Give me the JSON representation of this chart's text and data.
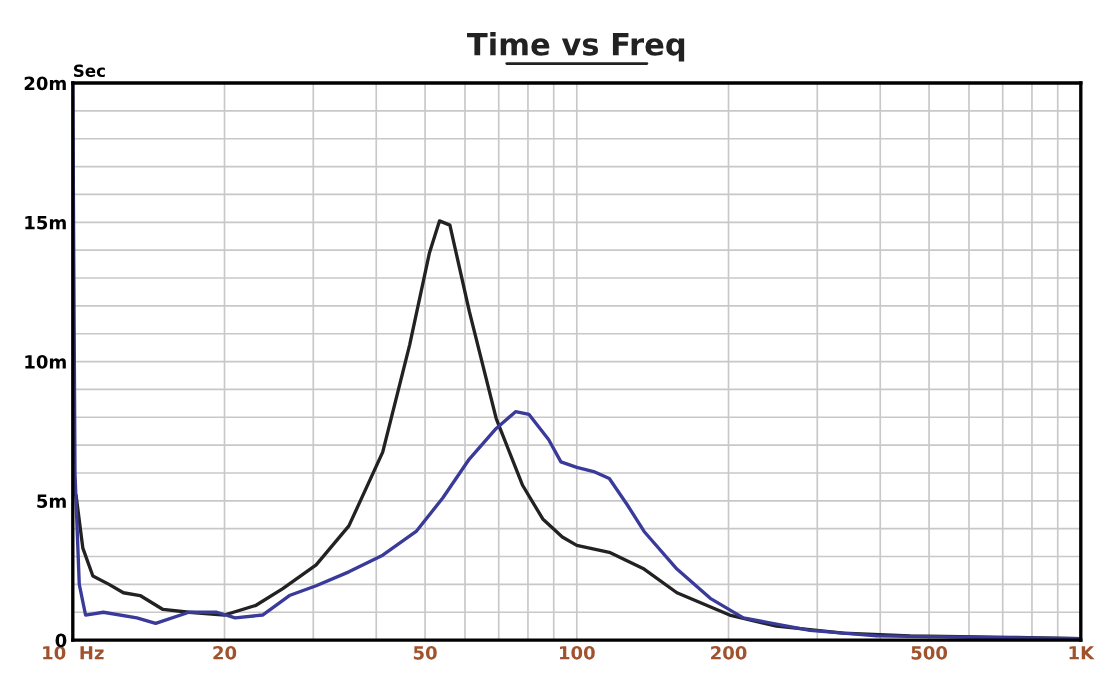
{
  "chart_data": {
    "type": "line",
    "title": "Time vs Freq",
    "ylabel": "Sec",
    "log": "x",
    "grid": true,
    "marker": "none",
    "line_style": "solid",
    "xlim": [
      10,
      1000
    ],
    "ylim": [
      0,
      20
    ],
    "xticks": [
      {
        "value": 10,
        "label": "10  Hz"
      },
      {
        "value": 20,
        "label": "20"
      },
      {
        "value": 30,
        "label": null
      },
      {
        "value": 40,
        "label": null
      },
      {
        "value": 50,
        "label": "50"
      },
      {
        "value": 60,
        "label": null
      },
      {
        "value": 70,
        "label": null
      },
      {
        "value": 80,
        "label": null
      },
      {
        "value": 90,
        "label": null
      },
      {
        "value": 100,
        "label": "100"
      },
      {
        "value": 200,
        "label": "200"
      },
      {
        "value": 300,
        "label": null
      },
      {
        "value": 400,
        "label": null
      },
      {
        "value": 500,
        "label": "500"
      },
      {
        "value": 600,
        "label": null
      },
      {
        "value": 700,
        "label": null
      },
      {
        "value": 800,
        "label": null
      },
      {
        "value": 900,
        "label": null
      },
      {
        "value": 1000,
        "label": "1K"
      }
    ],
    "yticks": [
      {
        "value": 0,
        "label": "0"
      },
      {
        "value": 1,
        "label": null
      },
      {
        "value": 2,
        "label": null
      },
      {
        "value": 3,
        "label": null
      },
      {
        "value": 4,
        "label": null
      },
      {
        "value": 5,
        "label": "5m"
      },
      {
        "value": 6,
        "label": null
      },
      {
        "value": 7,
        "label": null
      },
      {
        "value": 8,
        "label": null
      },
      {
        "value": 9,
        "label": null
      },
      {
        "value": 10,
        "label": "10m"
      },
      {
        "value": 11,
        "label": null
      },
      {
        "value": 12,
        "label": null
      },
      {
        "value": 13,
        "label": null
      },
      {
        "value": 14,
        "label": null
      },
      {
        "value": 15,
        "label": "15m"
      },
      {
        "value": 16,
        "label": null
      },
      {
        "value": 17,
        "label": null
      },
      {
        "value": 18,
        "label": null
      },
      {
        "value": 19,
        "label": null
      },
      {
        "value": 20,
        "label": "20m"
      }
    ],
    "series": [
      {
        "color": "#222222",
        "x": [
          10,
          10.15,
          10.47,
          10.96,
          11.8,
          12.6,
          13.6,
          15.1,
          17.0,
          20,
          23.1,
          26.1,
          30.4,
          35.3,
          41.2,
          46.6,
          51.0,
          53.4,
          56.0,
          61.2,
          69.2,
          78.1,
          85.6,
          93.6,
          100,
          116,
          136,
          158,
          201,
          249,
          338,
          458,
          724,
          1000
        ],
        "values": [
          5.3,
          5.2,
          3.3,
          2.3,
          2.0,
          1.7,
          1.6,
          1.1,
          1.0,
          0.9,
          1.25,
          1.85,
          2.7,
          4.1,
          6.75,
          10.6,
          13.9,
          15.05,
          14.9,
          11.8,
          7.95,
          5.55,
          4.35,
          3.7,
          3.4,
          3.15,
          2.55,
          1.7,
          0.9,
          0.5,
          0.25,
          0.15,
          0.1,
          0.05
        ]
      },
      {
        "color": "#3a3a9a",
        "x": [
          10,
          10.1,
          10.3,
          10.6,
          11.5,
          13.4,
          14.6,
          17,
          19.3,
          21,
          23.8,
          26.9,
          30.4,
          35.3,
          41.2,
          48,
          54.2,
          61.2,
          69.2,
          75.6,
          80.4,
          87.9,
          93,
          100,
          108,
          116,
          126,
          136,
          158,
          184,
          214,
          290,
          394,
          621,
          1000
        ],
        "values": [
          19.9,
          6.0,
          2.0,
          0.9,
          1.0,
          0.8,
          0.6,
          1.0,
          1.0,
          0.8,
          0.9,
          1.6,
          1.95,
          2.45,
          3.05,
          3.9,
          5.1,
          6.5,
          7.6,
          8.2,
          8.1,
          7.2,
          6.4,
          6.2,
          6.05,
          5.8,
          4.85,
          3.9,
          2.55,
          1.5,
          0.8,
          0.35,
          0.15,
          0.1,
          0.05
        ]
      }
    ]
  }
}
